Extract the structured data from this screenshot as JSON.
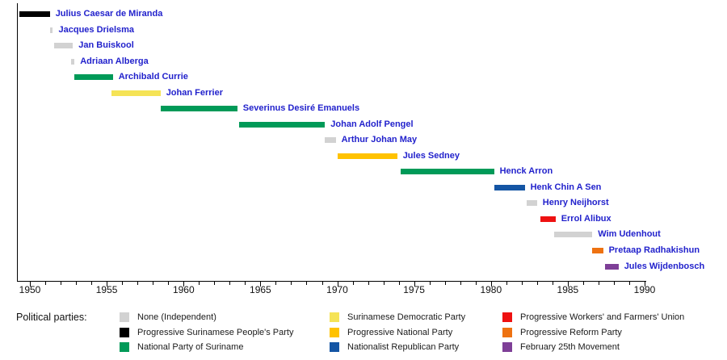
{
  "chart_data": {
    "type": "bar",
    "subtype": "timeline-gantt",
    "title": "",
    "xlabel": "",
    "ylabel": "",
    "xlim": [
      1949.2,
      1990.2
    ],
    "grid": false,
    "ticks": {
      "minor_every_years": 1,
      "major_labels": [
        "1950",
        "1955",
        "1960",
        "1965",
        "1970",
        "1975",
        "1980",
        "1985",
        "1990"
      ],
      "major_values": [
        1950,
        1955,
        1960,
        1965,
        1970,
        1975,
        1980,
        1985,
        1990
      ]
    },
    "parties": [
      {
        "label": "None (Independent)",
        "color": "#D2D2D2"
      },
      {
        "label": "Progressive Surinamese People's Party",
        "color": "#000000"
      },
      {
        "label": "National Party of Suriname",
        "color": "#009A58"
      },
      {
        "label": "Surinamese Democratic Party",
        "color": "#F5E356"
      },
      {
        "label": "Progressive National Party",
        "color": "#FFC200"
      },
      {
        "label": "Nationalist Republican Party",
        "color": "#1455A4"
      },
      {
        "label": "Progressive Workers' and Farmers' Union",
        "color": "#EE1111"
      },
      {
        "label": "Progressive Reform Party",
        "color": "#EE7211"
      },
      {
        "label": "February 25th Movement",
        "color": "#7E3F97"
      }
    ],
    "ministers": [
      {
        "name": "Julius Caesar de Miranda",
        "start": 1949.3,
        "end": 1951.3,
        "party_index": 1
      },
      {
        "name": "Jacques Drielsma",
        "start": 1951.3,
        "end": 1951.5,
        "party_index": 0
      },
      {
        "name": "Jan Buiskool",
        "start": 1951.6,
        "end": 1952.8,
        "party_index": 0
      },
      {
        "name": "Adriaan Alberga",
        "start": 1952.7,
        "end": 1952.9,
        "party_index": 0
      },
      {
        "name": "Archibald Currie",
        "start": 1952.9,
        "end": 1955.4,
        "party_index": 2
      },
      {
        "name": "Johan Ferrier",
        "start": 1955.3,
        "end": 1958.5,
        "party_index": 3
      },
      {
        "name": "Severinus Desiré Emanuels",
        "start": 1958.5,
        "end": 1963.5,
        "party_index": 2
      },
      {
        "name": "Johan Adolf Pengel",
        "start": 1963.6,
        "end": 1969.2,
        "party_index": 2
      },
      {
        "name": "Arthur Johan May",
        "start": 1969.2,
        "end": 1969.9,
        "party_index": 0
      },
      {
        "name": "Jules Sedney",
        "start": 1970.0,
        "end": 1973.9,
        "party_index": 4
      },
      {
        "name": "Henck Arron",
        "start": 1974.1,
        "end": 1980.2,
        "party_index": 2
      },
      {
        "name": "Henk Chin A Sen",
        "start": 1980.2,
        "end": 1982.2,
        "party_index": 5
      },
      {
        "name": "Henry Neijhorst",
        "start": 1982.3,
        "end": 1983.0,
        "party_index": 0
      },
      {
        "name": "Errol Alibux",
        "start": 1983.2,
        "end": 1984.2,
        "party_index": 6
      },
      {
        "name": "Wim Udenhout",
        "start": 1984.1,
        "end": 1986.6,
        "party_index": 0
      },
      {
        "name": "Pretaap Radhakishun",
        "start": 1986.6,
        "end": 1987.3,
        "party_index": 7
      },
      {
        "name": "Jules Wijdenbosch",
        "start": 1987.4,
        "end": 1988.3,
        "party_index": 8
      }
    ],
    "legend_position": "bottom"
  },
  "legend": {
    "title": "Political parties:",
    "columns": [
      [
        0,
        1,
        2
      ],
      [
        3,
        4,
        5
      ],
      [
        6,
        7,
        8
      ]
    ]
  },
  "colors": {
    "background": "#FFFFFF",
    "axis": "#000000",
    "name_link_text": "#2222CC",
    "legend_text": "#1A1A1A"
  }
}
